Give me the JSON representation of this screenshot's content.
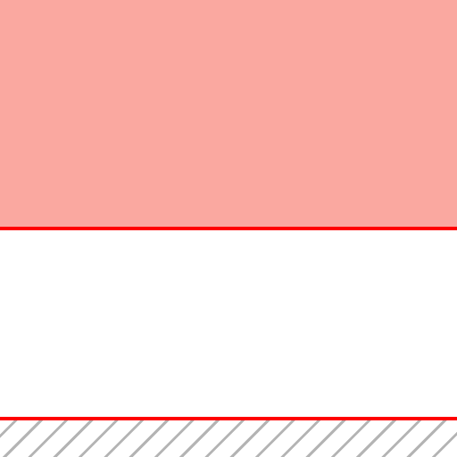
{
  "canvas": {
    "colors": {
      "highlight_fill": "#faa8a0",
      "guide_line": "#ff0000",
      "blank_fill": "#ffffff",
      "hatch_stroke": "#b4b4b4"
    },
    "regions": [
      {
        "name": "highlighted-band",
        "fill": "solid-salmon"
      },
      {
        "name": "blank-band",
        "fill": "white"
      },
      {
        "name": "hatched-band",
        "fill": "diagonal-hatch"
      }
    ]
  }
}
